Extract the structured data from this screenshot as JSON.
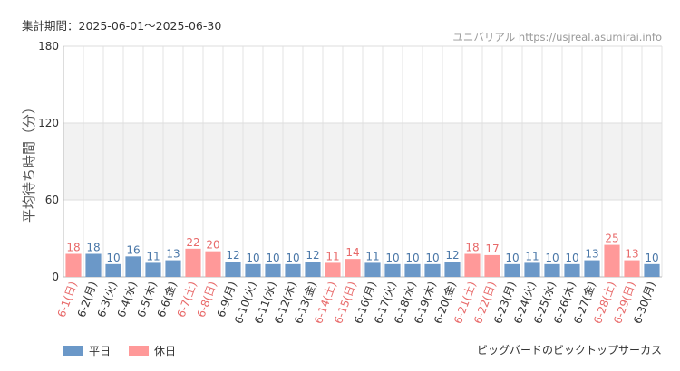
{
  "period_text": "集計期間：2025-06-01～2025-06-30",
  "source_text": "ユニバリアル  https://usjreal.asumirai.info",
  "footer_note": "ビッグバードのビックトップサーカス",
  "colors": {
    "weekday": "#6b98c8",
    "holiday": "#ff9999",
    "weekday_label": "#4a77a8",
    "holiday_label": "#e86a6a",
    "band": "#f2f2f2",
    "grid": "#e3e3e3"
  },
  "chart_data": {
    "type": "bar",
    "ylabel": "平均待ち時間（分）",
    "ylim": [
      0,
      180
    ],
    "yticks": [
      0,
      60,
      120,
      180
    ],
    "grid": true,
    "legend_position": "bottom-left",
    "series": [
      {
        "name": "平日",
        "key": "weekday"
      },
      {
        "name": "休日",
        "key": "holiday"
      }
    ],
    "categories": [
      "6-1(日)",
      "6-2(月)",
      "6-3(火)",
      "6-4(水)",
      "6-5(木)",
      "6-6(金)",
      "6-7(土)",
      "6-8(日)",
      "6-9(月)",
      "6-10(火)",
      "6-11(水)",
      "6-12(木)",
      "6-13(金)",
      "6-14(土)",
      "6-15(日)",
      "6-16(月)",
      "6-17(火)",
      "6-18(水)",
      "6-19(木)",
      "6-20(金)",
      "6-21(土)",
      "6-22(日)",
      "6-23(月)",
      "6-24(火)",
      "6-25(水)",
      "6-26(木)",
      "6-27(金)",
      "6-28(土)",
      "6-29(日)",
      "6-30(月)"
    ],
    "values": [
      18,
      18,
      10,
      16,
      11,
      13,
      22,
      20,
      12,
      10,
      10,
      10,
      12,
      11,
      14,
      11,
      10,
      10,
      10,
      12,
      18,
      17,
      10,
      11,
      10,
      10,
      13,
      25,
      13,
      10
    ],
    "day_type": [
      "holiday",
      "weekday",
      "weekday",
      "weekday",
      "weekday",
      "weekday",
      "holiday",
      "holiday",
      "weekday",
      "weekday",
      "weekday",
      "weekday",
      "weekday",
      "holiday",
      "holiday",
      "weekday",
      "weekday",
      "weekday",
      "weekday",
      "weekday",
      "holiday",
      "holiday",
      "weekday",
      "weekday",
      "weekday",
      "weekday",
      "weekday",
      "holiday",
      "holiday",
      "weekday"
    ]
  }
}
